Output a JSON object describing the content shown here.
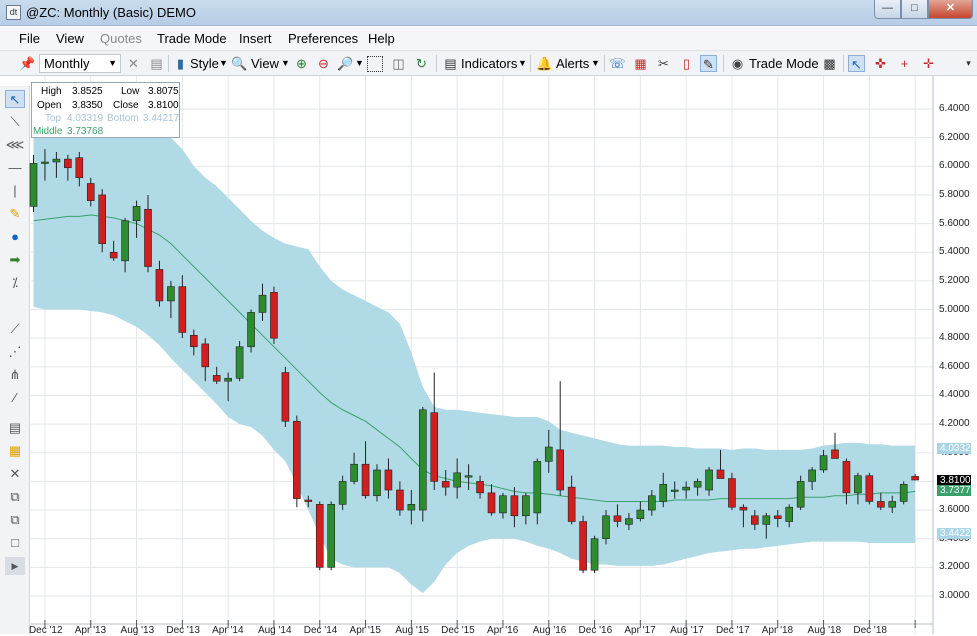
{
  "window": {
    "title": "@ZC: Monthly (Basic) DEMO",
    "app_icon": "dt",
    "controls": [
      "minimize-icon",
      "maximize-icon",
      "close-icon"
    ]
  },
  "menu": {
    "file": "File",
    "view": "View",
    "quotes": "Quotes",
    "trade_mode": "Trade Mode",
    "insert": "Insert",
    "preferences": "Preferences",
    "help": "Help"
  },
  "toolbar": {
    "period": "Monthly",
    "style": "Style",
    "view": "View",
    "indicators": "Indicators",
    "alerts": "Alerts",
    "trade_mode": "Trade Mode"
  },
  "infobox": {
    "high_label": "High",
    "high": "3.8525",
    "low_label": "Low",
    "low": "3.8075",
    "open_label": "Open",
    "open": "3.8350",
    "close_label": "Close",
    "close": "3.8100",
    "top_label": "Top",
    "top": "4.03319",
    "bottom_label": "Bottom",
    "bottom": "3.44217",
    "middle_label": "Middle",
    "middle": "3.73768"
  },
  "price_axis": [
    "6.4000",
    "6.2000",
    "6.0000",
    "5.8000",
    "5.6000",
    "5.4000",
    "5.2000",
    "5.0000",
    "4.8000",
    "4.6000",
    "4.4000",
    "4.2000",
    "4.0000",
    "3.6000",
    "3.4000",
    "3.2000",
    "3.0000"
  ],
  "price_tags": {
    "top": "4.0332",
    "close": "3.8100",
    "middle": "3.7377",
    "bottom": "3.4422"
  },
  "colors": {
    "band_fill": "#add8e6",
    "middle_line": "#3aa16b",
    "up_candle": "#2e8b2e",
    "down_candle": "#d11f1f",
    "close_tag": "#000000",
    "top_tag": "#a9d5e6"
  },
  "chart_data": {
    "type": "candlestick",
    "title": "@ZC: Monthly (Basic) DEMO",
    "xlabel": "",
    "ylabel": "",
    "ylim": [
      2.95,
      6.45
    ],
    "grid": true,
    "x_ticks": [
      "Dec '12",
      "Apr '13",
      "Aug '13",
      "Dec '13",
      "Apr '14",
      "Aug '14",
      "Dec '14",
      "Apr '15",
      "Aug '15",
      "Dec '15",
      "Apr '16",
      "Aug '16",
      "Dec '16",
      "Apr '17",
      "Aug '17",
      "Dec '17",
      "Apr '18",
      "Aug '18",
      "Dec '18"
    ],
    "candles": [
      {
        "o": 5.72,
        "h": 6.08,
        "l": 5.68,
        "c": 6.02
      },
      {
        "o": 6.02,
        "h": 6.12,
        "l": 5.9,
        "c": 6.03
      },
      {
        "o": 6.03,
        "h": 6.1,
        "l": 5.92,
        "c": 6.05
      },
      {
        "o": 6.05,
        "h": 6.08,
        "l": 5.9,
        "c": 5.99
      },
      {
        "o": 6.06,
        "h": 6.1,
        "l": 5.86,
        "c": 5.92
      },
      {
        "o": 5.88,
        "h": 5.92,
        "l": 5.72,
        "c": 5.76
      },
      {
        "o": 5.8,
        "h": 5.84,
        "l": 5.4,
        "c": 5.46
      },
      {
        "o": 5.4,
        "h": 5.48,
        "l": 5.34,
        "c": 5.36
      },
      {
        "o": 5.34,
        "h": 5.64,
        "l": 5.26,
        "c": 5.62
      },
      {
        "o": 5.62,
        "h": 5.76,
        "l": 5.5,
        "c": 5.72
      },
      {
        "o": 5.7,
        "h": 5.8,
        "l": 5.26,
        "c": 5.3
      },
      {
        "o": 5.28,
        "h": 5.34,
        "l": 5.02,
        "c": 5.06
      },
      {
        "o": 5.06,
        "h": 5.2,
        "l": 4.94,
        "c": 5.16
      },
      {
        "o": 5.16,
        "h": 5.24,
        "l": 4.8,
        "c": 4.84
      },
      {
        "o": 4.82,
        "h": 4.86,
        "l": 4.68,
        "c": 4.74
      },
      {
        "o": 4.76,
        "h": 4.8,
        "l": 4.5,
        "c": 4.6
      },
      {
        "o": 4.54,
        "h": 4.6,
        "l": 4.48,
        "c": 4.5
      },
      {
        "o": 4.5,
        "h": 4.56,
        "l": 4.36,
        "c": 4.52
      },
      {
        "o": 4.52,
        "h": 4.78,
        "l": 4.5,
        "c": 4.74
      },
      {
        "o": 4.74,
        "h": 5.0,
        "l": 4.7,
        "c": 4.98
      },
      {
        "o": 4.98,
        "h": 5.18,
        "l": 4.92,
        "c": 5.1
      },
      {
        "o": 5.12,
        "h": 5.16,
        "l": 4.76,
        "c": 4.8
      },
      {
        "o": 4.56,
        "h": 4.6,
        "l": 4.18,
        "c": 4.22
      },
      {
        "o": 4.22,
        "h": 4.26,
        "l": 3.62,
        "c": 3.68
      },
      {
        "o": 3.67,
        "h": 3.7,
        "l": 3.62,
        "c": 3.66
      },
      {
        "o": 3.64,
        "h": 3.66,
        "l": 3.18,
        "c": 3.2
      },
      {
        "o": 3.2,
        "h": 3.66,
        "l": 3.18,
        "c": 3.64
      },
      {
        "o": 3.64,
        "h": 3.84,
        "l": 3.6,
        "c": 3.8
      },
      {
        "o": 3.8,
        "h": 4.0,
        "l": 3.78,
        "c": 3.92
      },
      {
        "o": 3.92,
        "h": 4.08,
        "l": 3.68,
        "c": 3.7
      },
      {
        "o": 3.7,
        "h": 3.92,
        "l": 3.66,
        "c": 3.88
      },
      {
        "o": 3.88,
        "h": 3.96,
        "l": 3.68,
        "c": 3.74
      },
      {
        "o": 3.74,
        "h": 3.8,
        "l": 3.56,
        "c": 3.6
      },
      {
        "o": 3.6,
        "h": 3.74,
        "l": 3.5,
        "c": 3.64
      },
      {
        "o": 3.6,
        "h": 4.32,
        "l": 3.52,
        "c": 4.3
      },
      {
        "o": 4.28,
        "h": 4.56,
        "l": 3.74,
        "c": 3.8
      },
      {
        "o": 3.8,
        "h": 3.88,
        "l": 3.7,
        "c": 3.76
      },
      {
        "o": 3.76,
        "h": 3.96,
        "l": 3.68,
        "c": 3.86
      },
      {
        "o": 3.84,
        "h": 3.92,
        "l": 3.74,
        "c": 3.84
      },
      {
        "o": 3.8,
        "h": 3.84,
        "l": 3.68,
        "c": 3.72
      },
      {
        "o": 3.72,
        "h": 3.78,
        "l": 3.56,
        "c": 3.58
      },
      {
        "o": 3.58,
        "h": 3.72,
        "l": 3.54,
        "c": 3.7
      },
      {
        "o": 3.7,
        "h": 3.76,
        "l": 3.48,
        "c": 3.56
      },
      {
        "o": 3.56,
        "h": 3.72,
        "l": 3.5,
        "c": 3.7
      },
      {
        "o": 3.58,
        "h": 3.96,
        "l": 3.5,
        "c": 3.94
      },
      {
        "o": 3.94,
        "h": 4.16,
        "l": 3.86,
        "c": 4.04
      },
      {
        "o": 4.02,
        "h": 4.5,
        "l": 3.7,
        "c": 3.74
      },
      {
        "o": 3.76,
        "h": 3.84,
        "l": 3.5,
        "c": 3.52
      },
      {
        "o": 3.52,
        "h": 3.56,
        "l": 3.16,
        "c": 3.18
      },
      {
        "o": 3.18,
        "h": 3.42,
        "l": 3.16,
        "c": 3.4
      },
      {
        "o": 3.4,
        "h": 3.6,
        "l": 3.36,
        "c": 3.56
      },
      {
        "o": 3.56,
        "h": 3.64,
        "l": 3.48,
        "c": 3.52
      },
      {
        "o": 3.5,
        "h": 3.58,
        "l": 3.46,
        "c": 3.54
      },
      {
        "o": 3.54,
        "h": 3.66,
        "l": 3.52,
        "c": 3.6
      },
      {
        "o": 3.6,
        "h": 3.74,
        "l": 3.56,
        "c": 3.7
      },
      {
        "o": 3.66,
        "h": 3.86,
        "l": 3.62,
        "c": 3.78
      },
      {
        "o": 3.74,
        "h": 3.8,
        "l": 3.68,
        "c": 3.74
      },
      {
        "o": 3.74,
        "h": 3.8,
        "l": 3.68,
        "c": 3.76
      },
      {
        "o": 3.76,
        "h": 3.82,
        "l": 3.7,
        "c": 3.8
      },
      {
        "o": 3.74,
        "h": 3.9,
        "l": 3.7,
        "c": 3.88
      },
      {
        "o": 3.88,
        "h": 4.02,
        "l": 3.82,
        "c": 3.82
      },
      {
        "o": 3.82,
        "h": 3.86,
        "l": 3.6,
        "c": 3.62
      },
      {
        "o": 3.62,
        "h": 3.64,
        "l": 3.48,
        "c": 3.6
      },
      {
        "o": 3.56,
        "h": 3.6,
        "l": 3.46,
        "c": 3.5
      },
      {
        "o": 3.5,
        "h": 3.58,
        "l": 3.4,
        "c": 3.56
      },
      {
        "o": 3.56,
        "h": 3.6,
        "l": 3.48,
        "c": 3.54
      },
      {
        "o": 3.52,
        "h": 3.64,
        "l": 3.48,
        "c": 3.62
      },
      {
        "o": 3.62,
        "h": 3.84,
        "l": 3.6,
        "c": 3.8
      },
      {
        "o": 3.8,
        "h": 3.9,
        "l": 3.74,
        "c": 3.88
      },
      {
        "o": 3.88,
        "h": 4.02,
        "l": 3.86,
        "c": 3.98
      },
      {
        "o": 4.02,
        "h": 4.14,
        "l": 3.96,
        "c": 3.96
      },
      {
        "o": 3.94,
        "h": 3.96,
        "l": 3.64,
        "c": 3.72
      },
      {
        "o": 3.72,
        "h": 3.86,
        "l": 3.64,
        "c": 3.84
      },
      {
        "o": 3.84,
        "h": 3.86,
        "l": 3.64,
        "c": 3.66
      },
      {
        "o": 3.66,
        "h": 3.72,
        "l": 3.6,
        "c": 3.62
      },
      {
        "o": 3.62,
        "h": 3.7,
        "l": 3.58,
        "c": 3.66
      },
      {
        "o": 3.66,
        "h": 3.8,
        "l": 3.64,
        "c": 3.78
      },
      {
        "o": 3.835,
        "h": 3.8525,
        "l": 3.8075,
        "c": 3.81
      }
    ],
    "bands": {
      "top": [
        6.3,
        6.3,
        6.32,
        6.32,
        6.33,
        6.33,
        6.33,
        6.33,
        6.33,
        6.3,
        6.28,
        6.24,
        6.2,
        6.12,
        6.0,
        5.92,
        5.86,
        5.78,
        5.7,
        5.62,
        5.55,
        5.5,
        5.46,
        5.44,
        5.42,
        5.3,
        5.2,
        5.14,
        5.1,
        5.06,
        5.02,
        4.98,
        4.9,
        4.7,
        4.46,
        4.32,
        4.3,
        4.3,
        4.29,
        4.28,
        4.27,
        4.26,
        4.25,
        4.25,
        4.25,
        4.22,
        4.16,
        4.14,
        4.12,
        4.1,
        4.08,
        4.06,
        4.05,
        4.05,
        4.05,
        4.05,
        4.04,
        4.04,
        4.03,
        4.03,
        4.03,
        4.02,
        4.03,
        4.03,
        4.02,
        4.02,
        4.02,
        4.02,
        4.03,
        4.05,
        4.06,
        4.07,
        4.07,
        4.06,
        4.06,
        4.05,
        4.05,
        4.05,
        4.04,
        4.034
      ],
      "middle": [
        5.62,
        5.63,
        5.64,
        5.65,
        5.65,
        5.66,
        5.65,
        5.64,
        5.62,
        5.6,
        5.56,
        5.52,
        5.46,
        5.38,
        5.3,
        5.22,
        5.14,
        5.06,
        4.98,
        4.9,
        4.82,
        4.74,
        4.66,
        4.58,
        4.5,
        4.42,
        4.35,
        4.3,
        4.26,
        4.22,
        4.16,
        4.1,
        4.04,
        3.96,
        3.88,
        3.84,
        3.82,
        3.8,
        3.79,
        3.78,
        3.77,
        3.75,
        3.73,
        3.72,
        3.72,
        3.71,
        3.7,
        3.69,
        3.68,
        3.67,
        3.66,
        3.66,
        3.66,
        3.66,
        3.66,
        3.66,
        3.67,
        3.67,
        3.67,
        3.67,
        3.68,
        3.68,
        3.68,
        3.68,
        3.68,
        3.68,
        3.68,
        3.69,
        3.69,
        3.69,
        3.7,
        3.7,
        3.71,
        3.71,
        3.72,
        3.72,
        3.72,
        3.73,
        3.735,
        3.738
      ],
      "bottom": [
        5.02,
        5.0,
        5.0,
        5.0,
        5.0,
        4.99,
        4.98,
        4.96,
        4.92,
        4.88,
        4.82,
        4.75,
        4.66,
        4.58,
        4.5,
        4.42,
        4.34,
        4.25,
        4.2,
        4.18,
        4.12,
        4.02,
        3.94,
        3.78,
        3.6,
        3.42,
        3.26,
        3.22,
        3.2,
        3.2,
        3.2,
        3.2,
        3.16,
        3.08,
        3.02,
        3.1,
        3.22,
        3.3,
        3.35,
        3.38,
        3.4,
        3.4,
        3.4,
        3.38,
        3.35,
        3.33,
        3.3,
        3.26,
        3.24,
        3.22,
        3.22,
        3.21,
        3.21,
        3.21,
        3.21,
        3.22,
        3.24,
        3.26,
        3.28,
        3.3,
        3.31,
        3.32,
        3.33,
        3.33,
        3.34,
        3.35,
        3.36,
        3.37,
        3.38,
        3.38,
        3.38,
        3.38,
        3.38,
        3.37,
        3.37,
        3.37,
        3.37,
        3.37,
        3.39,
        3.442
      ]
    }
  }
}
